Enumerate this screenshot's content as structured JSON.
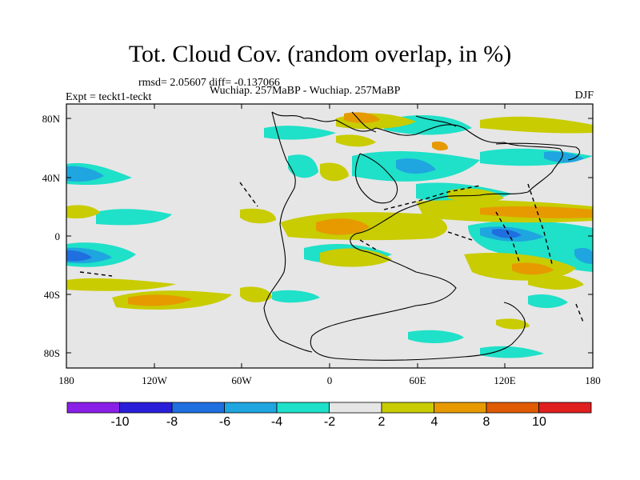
{
  "title": "Tot. Cloud Cov. (random overlap, in %)",
  "stats_line": "rmsd= 2.05607 diff= -0.137066",
  "experiment_line": "Expt = teckt1-teckt",
  "model_line": "Wuchiap. 257MaBP - Wuchiap. 257MaBP",
  "season": "DJF",
  "x_tick_labels": [
    "180",
    "120W",
    "60W",
    "0",
    "60E",
    "120E",
    "180"
  ],
  "y_tick_labels": [
    "80N",
    "40N",
    "0",
    "40S",
    "80S"
  ],
  "colorbar": {
    "levels": [
      "-10",
      "-8",
      "-6",
      "-4",
      "-2",
      "2",
      "4",
      "8",
      "10"
    ],
    "colors": [
      "#8a1fe8",
      "#2a1fd9",
      "#1f6fe0",
      "#1fa5e0",
      "#1fe0c8",
      "#e6e6e6",
      "#c8cc00",
      "#e69a00",
      "#e05a00",
      "#e01f1f"
    ]
  },
  "chart_data": {
    "type": "heatmap",
    "title": "Tot. Cloud Cov. (random overlap, in %)",
    "projection": "cylindrical equidistant",
    "xlim": [
      -180,
      180
    ],
    "ylim": [
      -90,
      90
    ],
    "x_ticks": [
      -180,
      -120,
      -60,
      0,
      60,
      120,
      180
    ],
    "y_ticks": [
      80,
      40,
      0,
      -40,
      -80
    ],
    "levels": [
      -10,
      -8,
      -6,
      -4,
      -2,
      2,
      4,
      8,
      10
    ],
    "units": "%",
    "features": [
      {
        "lon": [
          -180,
          -150
        ],
        "lat": [
          -22,
          -12
        ],
        "band": "-8"
      },
      {
        "lon": [
          -180,
          -165
        ],
        "lat": [
          38,
          45
        ],
        "band": "-4"
      },
      {
        "lon": [
          -180,
          -150
        ],
        "lat": [
          20,
          30
        ],
        "band": "2"
      },
      {
        "lon": [
          -120,
          -70
        ],
        "lat": [
          -46,
          -38
        ],
        "band": "4"
      },
      {
        "lon": [
          -150,
          -60
        ],
        "lat": [
          -50,
          -34
        ],
        "band": "2"
      },
      {
        "lon": [
          -5,
          30
        ],
        "lat": [
          -5,
          10
        ],
        "band": "4"
      },
      {
        "lon": [
          -30,
          90
        ],
        "lat": [
          -5,
          20
        ],
        "band": "2"
      },
      {
        "lon": [
          95,
          180
        ],
        "lat": [
          10,
          20
        ],
        "band": "4"
      },
      {
        "lon": [
          110,
          160
        ],
        "lat": [
          -5,
          10
        ],
        "band": "-6"
      },
      {
        "lon": [
          160,
          180
        ],
        "lat": [
          -20,
          -5
        ],
        "band": "-6"
      },
      {
        "lon": [
          90,
          160
        ],
        "lat": [
          -35,
          -20
        ],
        "band": "4"
      },
      {
        "lon": [
          10,
          90
        ],
        "lat": [
          40,
          55
        ],
        "band": "-6"
      },
      {
        "lon": [
          20,
          60
        ],
        "lat": [
          78,
          88
        ],
        "band": "2"
      }
    ]
  }
}
